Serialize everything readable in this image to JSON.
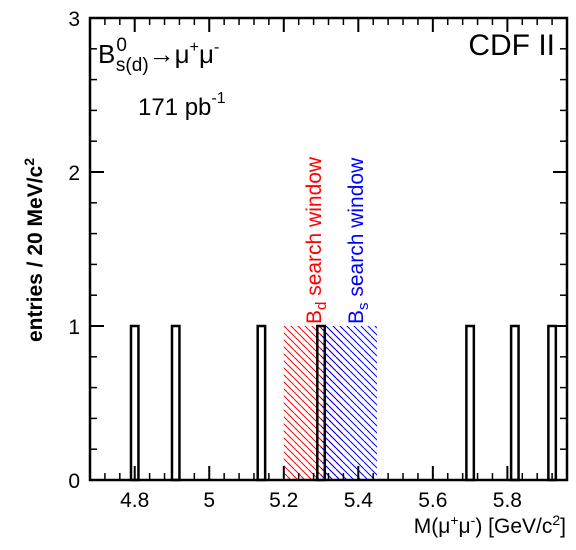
{
  "chart_data": {
    "type": "bar",
    "histogram": true,
    "bin_width": 0.02,
    "xlabel": {
      "prefix": "M(",
      "mu": "μ",
      "plus": "+",
      "minus": "-",
      "suffix": ")  [GeV/c",
      "sup2": "2",
      "close": "]"
    },
    "ylabel": {
      "main": "entries / 20 MeV/c",
      "sup2": "2"
    },
    "xlim": [
      4.68,
      5.96
    ],
    "ylim": [
      0,
      3
    ],
    "x_ticks": [
      4.8,
      5.0,
      5.2,
      5.4,
      5.6,
      5.8
    ],
    "x_tick_labels": [
      "4.8",
      "5",
      "5.2",
      "5.4",
      "5.6",
      "5.8"
    ],
    "y_ticks": [
      0,
      1,
      2,
      3
    ],
    "y_tick_labels": [
      "0",
      "1",
      "2",
      "3"
    ],
    "bins": [
      {
        "x_low": 4.79,
        "x_high": 4.81,
        "value": 1
      },
      {
        "x_low": 4.9,
        "x_high": 4.92,
        "value": 1
      },
      {
        "x_low": 5.13,
        "x_high": 5.15,
        "value": 1
      },
      {
        "x_low": 5.29,
        "x_high": 5.31,
        "value": 1
      },
      {
        "x_low": 5.69,
        "x_high": 5.71,
        "value": 1
      },
      {
        "x_low": 5.81,
        "x_high": 5.83,
        "value": 1
      },
      {
        "x_low": 5.91,
        "x_high": 5.93,
        "value": 1
      }
    ],
    "windows": [
      {
        "name": "Bd",
        "x_range": [
          5.2,
          5.36
        ],
        "height": 1,
        "color": "#ff0000",
        "label_B": "B",
        "label_sub": "d",
        "label_rest": " search window"
      },
      {
        "name": "Bs",
        "x_range": [
          5.3,
          5.45
        ],
        "height": 1,
        "color": "#0000ff",
        "label_B": "B",
        "label_sub": "s",
        "label_rest": " search window"
      }
    ],
    "annotations": {
      "decay": {
        "B": "B",
        "sup0": "0",
        "sub": "s(d)",
        "arrow": "→",
        "mu": "μ",
        "plus": "+",
        "minus": "-"
      },
      "experiment": "CDF II",
      "luminosity": {
        "main": "171 pb",
        "sup": "-1"
      }
    }
  }
}
